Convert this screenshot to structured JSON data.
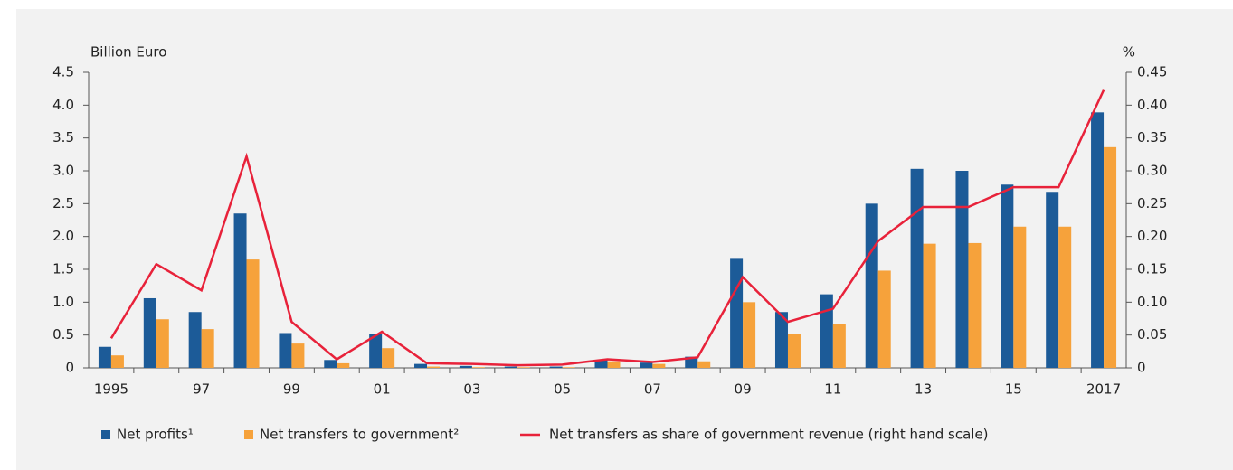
{
  "chart_data": {
    "type": "bar",
    "y_label": "Billion Euro",
    "y2_label": "%",
    "categories": [
      "1995",
      null,
      "97",
      null,
      "99",
      null,
      "01",
      null,
      "03",
      null,
      "05",
      null,
      "07",
      null,
      "09",
      null,
      "11",
      null,
      "13",
      null,
      "15",
      null,
      "2017"
    ],
    "series": [
      {
        "name": "Net profits¹",
        "color": "#1c5b98",
        "type": "bar",
        "values": [
          0.32,
          1.06,
          0.85,
          2.35,
          0.53,
          0.12,
          0.52,
          0.06,
          0.03,
          0.02,
          0.02,
          0.12,
          0.08,
          0.17,
          1.66,
          0.85,
          1.12,
          2.5,
          3.03,
          3.0,
          2.79,
          2.68,
          3.89
        ]
      },
      {
        "name": "Net transfers to government²",
        "color": "#f6a23b",
        "type": "bar",
        "values": [
          0.19,
          0.74,
          0.59,
          1.65,
          0.37,
          0.07,
          0.3,
          0.02,
          0.01,
          0.01,
          0.01,
          0.1,
          0.06,
          0.1,
          1.0,
          0.51,
          0.67,
          1.48,
          1.89,
          1.9,
          2.15,
          2.15,
          3.36
        ]
      },
      {
        "name": "Net transfers as share of government revenue (right hand scale)",
        "color": "#e8223a",
        "type": "line",
        "axis": "y2",
        "values": [
          0.045,
          0.158,
          0.118,
          0.322,
          0.07,
          0.013,
          0.055,
          0.007,
          0.006,
          0.004,
          0.005,
          0.013,
          0.009,
          0.016,
          0.138,
          0.07,
          0.09,
          0.193,
          0.245,
          0.245,
          0.275,
          0.275,
          0.423
        ]
      }
    ],
    "ylim": [
      0,
      4.5
    ],
    "yticks": [
      0,
      0.5,
      {
        "value": 1,
        "label": "1.0"
      },
      1.5,
      {
        "value": 2,
        "label": "2.0"
      },
      2.5,
      {
        "value": 3,
        "label": "3.0"
      },
      3.5,
      {
        "value": 4,
        "label": "4.0"
      },
      4.5
    ],
    "y2lim": [
      0,
      0.45
    ],
    "y2ticks": [
      0,
      0.05,
      {
        "value": 0.1,
        "label": "0.10"
      },
      0.15,
      {
        "value": 0.2,
        "label": "0.20"
      },
      0.25,
      {
        "value": 0.3,
        "label": "0.30"
      },
      0.35,
      {
        "value": 0.4,
        "label": "0.40"
      },
      0.45
    ],
    "grid": false
  }
}
